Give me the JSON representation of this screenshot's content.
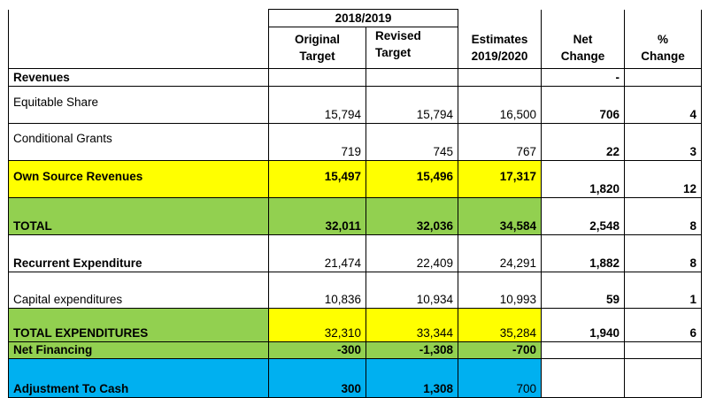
{
  "header": {
    "period": "2018/2019",
    "col_original": "Original Target",
    "col_original_l1": "Original",
    "col_original_l2": "Target",
    "col_revised_l1": "Revised",
    "col_revised_l2": "Target",
    "col_estimates_l1": "Estimates",
    "col_estimates_l2": "2019/2020",
    "col_net_l1": "Net",
    "col_net_l2": "Change",
    "col_pct_l1": "%",
    "col_pct_l2": "Change"
  },
  "rows": [
    {
      "label": "Revenues",
      "original": "",
      "revised": "",
      "estimates": "",
      "net": "-",
      "pct": ""
    },
    {
      "label": "Equitable  Share",
      "original": "15,794",
      "revised": "15,794",
      "estimates": "16,500",
      "net": "706",
      "pct": "4"
    },
    {
      "label": "Conditional  Grants",
      "original": "719",
      "revised": "745",
      "estimates": "767",
      "net": "22",
      "pct": "3"
    },
    {
      "label": "Own Source  Revenues",
      "original": "15,497",
      "revised": "15,496",
      "estimates": "17,317",
      "net": "1,820",
      "pct": "12"
    },
    {
      "label": "TOTAL",
      "original": "32,011",
      "revised": "32,036",
      "estimates": "34,584",
      "net": "2,548",
      "pct": "8"
    },
    {
      "label": "Recurrent  Expenditure",
      "original": "21,474",
      "revised": "22,409",
      "estimates": "24,291",
      "net": "1,882",
      "pct": "8"
    },
    {
      "label": "Capital expenditures",
      "original": "10,836",
      "revised": "10,934",
      "estimates": "10,993",
      "net": "59",
      "pct": "1"
    },
    {
      "label": "TOTAL  EXPENDITURES",
      "original": "32,310",
      "revised": "33,344",
      "estimates": "35,284",
      "net": "1,940",
      "pct": "6"
    },
    {
      "label": "Net Financing",
      "original": "-300",
      "revised": "-1,308",
      "estimates": "-700",
      "net": "",
      "pct": ""
    },
    {
      "label": "Adjustment  To Cash",
      "original": "300",
      "revised": "1,308",
      "estimates": "700",
      "net": "",
      "pct": ""
    }
  ],
  "colors": {
    "yellow": "#ffff00",
    "green": "#92d050",
    "blue": "#00b0f0"
  }
}
